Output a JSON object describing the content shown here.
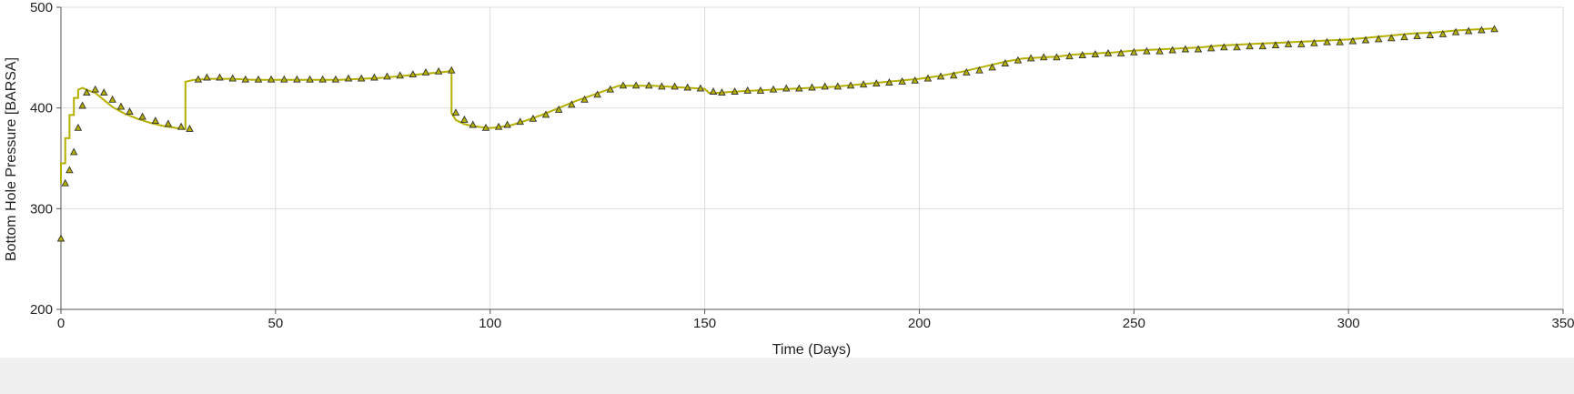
{
  "chart_data": {
    "type": "line",
    "xlabel": "Time (Days)",
    "ylabel": "Bottom Hole Pressure [BARSA]",
    "xlim": [
      0,
      350
    ],
    "ylim": [
      200,
      500
    ],
    "x_ticks": [
      "0",
      "50",
      "100",
      "150",
      "200",
      "250",
      "300",
      "350"
    ],
    "y_ticks": [
      "200",
      "300",
      "400",
      "500"
    ],
    "grid": true,
    "colors": {
      "line": "#b5b000",
      "marker_fill": "#b5b000",
      "marker_edge": "#333333"
    },
    "series": [
      {
        "kind": "simulated_line",
        "x": [
          0,
          0,
          1,
          1,
          2,
          2,
          3,
          3,
          4,
          4,
          5,
          6,
          8,
          10,
          12,
          15,
          18,
          21,
          24,
          27,
          29,
          29,
          31,
          35,
          40,
          45,
          50,
          55,
          60,
          65,
          70,
          75,
          80,
          85,
          90,
          91,
          91,
          92,
          94,
          96,
          98,
          100,
          102,
          105,
          108,
          112,
          116,
          120,
          124,
          128,
          130,
          134,
          138,
          142,
          146,
          150,
          151,
          153,
          156,
          160,
          165,
          170,
          175,
          180,
          185,
          190,
          195,
          200,
          205,
          210,
          215,
          220,
          224,
          228,
          232,
          236,
          240,
          245,
          250,
          255,
          260,
          265,
          270,
          275,
          280,
          285,
          290,
          295,
          300,
          305,
          310,
          315,
          320,
          325,
          330,
          334
        ],
        "y": [
          325,
          345,
          345,
          370,
          370,
          393,
          393,
          410,
          410,
          418,
          420,
          418,
          415,
          408,
          401,
          394,
          389,
          385,
          382,
          380,
          379,
          426,
          428,
          429,
          429,
          428,
          428,
          428,
          428,
          428,
          429,
          430,
          432,
          434,
          436,
          438,
          395,
          388,
          384,
          382,
          381,
          380,
          381,
          383,
          387,
          393,
          400,
          407,
          413,
          419,
          422,
          422,
          422,
          421,
          420,
          419,
          415,
          415,
          416,
          417,
          418,
          419,
          420,
          421,
          423,
          425,
          427,
          429,
          432,
          436,
          441,
          446,
          449,
          450,
          451,
          453,
          454,
          455,
          457,
          458,
          459,
          460,
          462,
          463,
          464,
          465,
          466,
          467,
          468,
          470,
          472,
          474,
          475,
          477,
          478,
          479
        ]
      },
      {
        "kind": "observed_markers",
        "x": [
          0,
          1,
          2,
          3,
          4,
          5,
          6,
          8,
          10,
          12,
          14,
          16,
          19,
          22,
          25,
          28,
          30,
          32,
          34,
          37,
          40,
          43,
          46,
          49,
          52,
          55,
          58,
          61,
          64,
          67,
          70,
          73,
          76,
          79,
          82,
          85,
          88,
          91,
          92,
          94,
          96,
          99,
          102,
          104,
          107,
          110,
          113,
          116,
          119,
          122,
          125,
          128,
          131,
          134,
          137,
          140,
          143,
          146,
          149,
          152,
          154,
          157,
          160,
          163,
          166,
          169,
          172,
          175,
          178,
          181,
          184,
          187,
          190,
          193,
          196,
          199,
          202,
          205,
          208,
          211,
          214,
          217,
          220,
          223,
          226,
          229,
          232,
          235,
          238,
          241,
          244,
          247,
          250,
          253,
          256,
          259,
          262,
          265,
          268,
          271,
          274,
          277,
          280,
          283,
          286,
          289,
          292,
          295,
          298,
          301,
          304,
          307,
          310,
          313,
          316,
          319,
          322,
          325,
          328,
          331,
          334
        ],
        "y": [
          270,
          325,
          338,
          356,
          380,
          402,
          415,
          418,
          415,
          408,
          401,
          396,
          391,
          387,
          384,
          381,
          379,
          428,
          430,
          430,
          429,
          428,
          428,
          428,
          428,
          428,
          428,
          428,
          428,
          429,
          429,
          430,
          431,
          432,
          433,
          435,
          436,
          437,
          395,
          388,
          383,
          380,
          381,
          383,
          386,
          389,
          393,
          398,
          403,
          408,
          413,
          418,
          422,
          422,
          422,
          421,
          421,
          420,
          419,
          416,
          415,
          416,
          417,
          417,
          418,
          419,
          419,
          420,
          421,
          421,
          422,
          423,
          424,
          425,
          426,
          427,
          429,
          431,
          432,
          435,
          437,
          440,
          444,
          447,
          449,
          450,
          450,
          451,
          452,
          453,
          454,
          454,
          455,
          456,
          456,
          457,
          458,
          458,
          459,
          460,
          460,
          461,
          461,
          462,
          463,
          463,
          464,
          465,
          465,
          466,
          467,
          468,
          469,
          470,
          471,
          472,
          473,
          475,
          476,
          477,
          478
        ]
      }
    ]
  }
}
